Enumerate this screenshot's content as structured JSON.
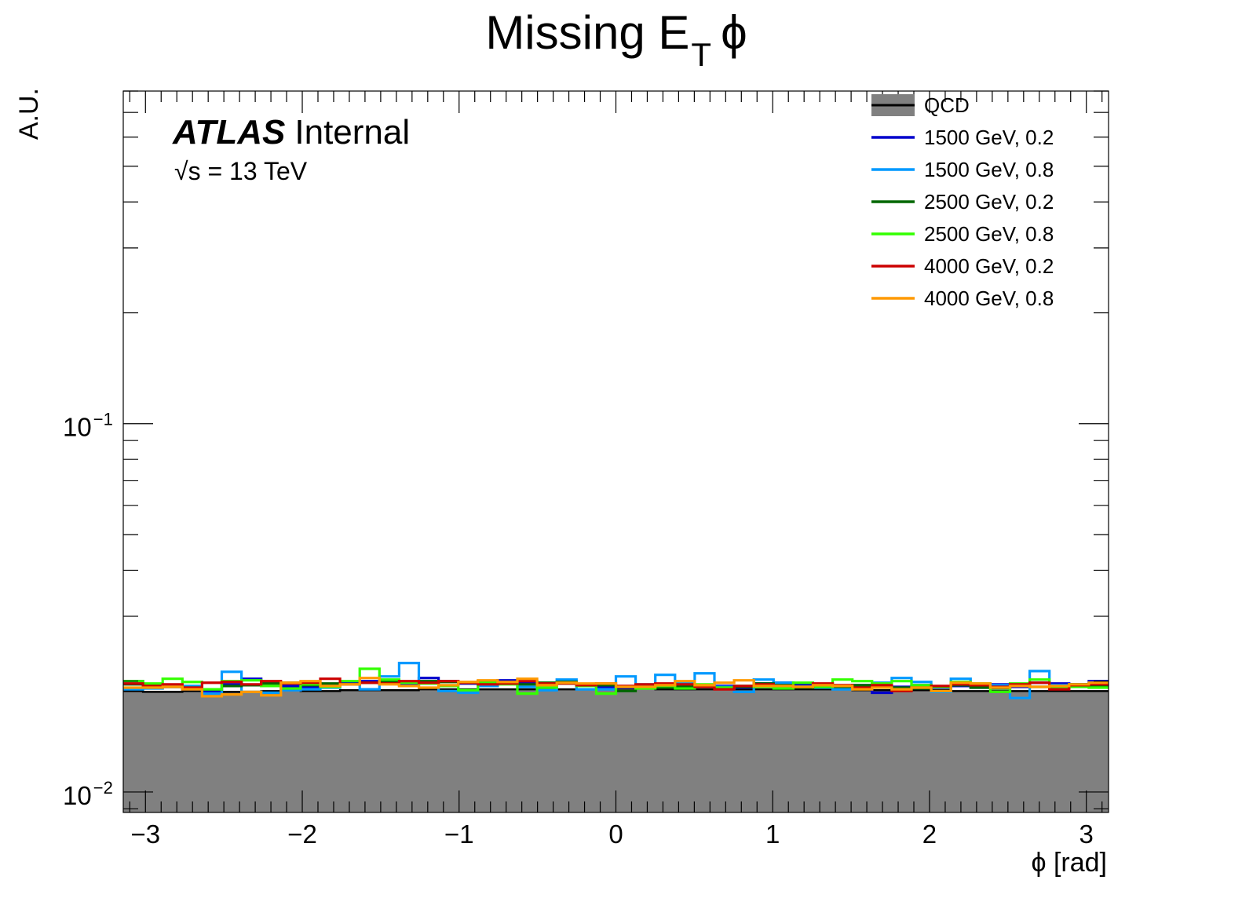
{
  "chart_data": {
    "type": "line",
    "title": "Missing E",
    "title_subscript": "T",
    "title_suffix": "ϕ",
    "xlabel": "ϕ [rad]",
    "ylabel": "A.U.",
    "xlim": [
      -3.1416,
      3.1416
    ],
    "ylim": [
      0.0088,
      0.8
    ],
    "yscale": "log",
    "grid": false,
    "x_ticks": [
      "−3",
      "−2",
      "−1",
      "0",
      "1",
      "2",
      "3"
    ],
    "x_tick_values": [
      -3,
      -2,
      -1,
      0,
      1,
      2,
      3
    ],
    "y_tick_labels": [
      {
        "base": "10",
        "exp": "−1",
        "value": 0.1
      },
      {
        "base": "10",
        "exp": "−2",
        "value": 0.01
      }
    ],
    "annotations": {
      "atlas": "ATLAS",
      "status": "Internal",
      "energy_root": "√",
      "energy": "s = 13 TeV"
    },
    "legend_position": "top-right",
    "bin_edges_range": [
      -3.1416,
      3.1416
    ],
    "n_bins": 50,
    "series": [
      {
        "name": "QCD",
        "color": "#808080",
        "style": "filled",
        "values": [
          0.0188,
          0.0187,
          0.0187,
          0.0188,
          0.0188,
          0.0187,
          0.0187,
          0.0188,
          0.0189,
          0.0188,
          0.0188,
          0.0189,
          0.0189,
          0.0189,
          0.0189,
          0.019,
          0.019,
          0.019,
          0.019,
          0.019,
          0.019,
          0.019,
          0.019,
          0.019,
          0.019,
          0.0191,
          0.0191,
          0.019,
          0.019,
          0.019,
          0.019,
          0.019,
          0.019,
          0.019,
          0.019,
          0.019,
          0.019,
          0.0189,
          0.0189,
          0.0189,
          0.0189,
          0.0189,
          0.0188,
          0.0188,
          0.0188,
          0.0188,
          0.0188,
          0.0188,
          0.0188,
          0.0188
        ]
      },
      {
        "name": "1500 GeV, 0.2",
        "color": "#0000cc",
        "style": "step",
        "values": [
          0.02,
          0.0195,
          0.0193,
          0.019,
          0.0188,
          0.0196,
          0.0203,
          0.0198,
          0.0194,
          0.0193,
          0.0195,
          0.0199,
          0.02,
          0.0197,
          0.0195,
          0.0204,
          0.02,
          0.0197,
          0.0198,
          0.0201,
          0.0198,
          0.0196,
          0.0197,
          0.0194,
          0.0193,
          0.0192,
          0.0195,
          0.0196,
          0.0198,
          0.0195,
          0.0194,
          0.0192,
          0.0197,
          0.0198,
          0.0196,
          0.0194,
          0.0193,
          0.0195,
          0.0186,
          0.0193,
          0.0195,
          0.0192,
          0.0194,
          0.0195,
          0.0196,
          0.0193,
          0.0198,
          0.0197,
          0.0196,
          0.02
        ]
      },
      {
        "name": "1500 GeV, 0.8",
        "color": "#0099ff",
        "style": "step",
        "values": [
          0.019,
          0.0191,
          0.0193,
          0.0194,
          0.0185,
          0.0212,
          0.0187,
          0.0186,
          0.0189,
          0.019,
          0.0192,
          0.0196,
          0.019,
          0.0206,
          0.0224,
          0.0198,
          0.0188,
          0.0186,
          0.0194,
          0.0197,
          0.0193,
          0.0189,
          0.0202,
          0.019,
          0.019,
          0.0206,
          0.0196,
          0.0208,
          0.0198,
          0.021,
          0.0193,
          0.0187,
          0.0202,
          0.0198,
          0.0193,
          0.0192,
          0.019,
          0.0195,
          0.0198,
          0.0204,
          0.0199,
          0.0187,
          0.0203,
          0.0192,
          0.0195,
          0.018,
          0.0213,
          0.0195,
          0.0196,
          0.0198
        ]
      },
      {
        "name": "2500 GeV, 0.2",
        "color": "#006600",
        "style": "step",
        "values": [
          0.0196,
          0.0195,
          0.0193,
          0.0192,
          0.019,
          0.0194,
          0.0195,
          0.0197,
          0.0198,
          0.0195,
          0.0197,
          0.0196,
          0.0198,
          0.0199,
          0.0199,
          0.02,
          0.0199,
          0.0198,
          0.02,
          0.0197,
          0.0196,
          0.0198,
          0.0199,
          0.0196,
          0.0195,
          0.0188,
          0.0193,
          0.0192,
          0.0194,
          0.0193,
          0.0192,
          0.0193,
          0.0197,
          0.0195,
          0.0192,
          0.0193,
          0.0193,
          0.0195,
          0.0194,
          0.0192,
          0.0191,
          0.0193,
          0.0195,
          0.0192,
          0.0191,
          0.0195,
          0.0193,
          0.0191,
          0.0196,
          0.0194
        ]
      },
      {
        "name": "2500 GeV, 0.8",
        "color": "#33ff00",
        "style": "step",
        "values": [
          0.02,
          0.0197,
          0.0203,
          0.0199,
          0.019,
          0.02,
          0.0201,
          0.0194,
          0.0191,
          0.0196,
          0.0193,
          0.02,
          0.0216,
          0.0202,
          0.0198,
          0.0197,
          0.0194,
          0.0189,
          0.0198,
          0.0196,
          0.0185,
          0.0192,
          0.0197,
          0.0194,
          0.0185,
          0.0193,
          0.0191,
          0.0194,
          0.0191,
          0.0196,
          0.0192,
          0.0194,
          0.0193,
          0.0191,
          0.0198,
          0.0193,
          0.0202,
          0.02,
          0.0197,
          0.02,
          0.0195,
          0.0193,
          0.0199,
          0.0197,
          0.0187,
          0.0197,
          0.0202,
          0.0191,
          0.0193,
          0.0192
        ]
      },
      {
        "name": "4000 GeV, 0.2",
        "color": "#cc0000",
        "style": "step",
        "values": [
          0.0197,
          0.0194,
          0.0196,
          0.0192,
          0.0198,
          0.0199,
          0.0196,
          0.02,
          0.0197,
          0.0198,
          0.0203,
          0.0196,
          0.0198,
          0.0197,
          0.02,
          0.0198,
          0.02,
          0.0198,
          0.0196,
          0.0197,
          0.02,
          0.0197,
          0.0197,
          0.0195,
          0.0197,
          0.0194,
          0.0196,
          0.0197,
          0.0196,
          0.0193,
          0.019,
          0.0194,
          0.0196,
          0.0194,
          0.0193,
          0.0197,
          0.0195,
          0.0192,
          0.0195,
          0.0188,
          0.0192,
          0.0194,
          0.0196,
          0.0195,
          0.0193,
          0.0196,
          0.0198,
          0.019,
          0.0195,
          0.0196
        ]
      },
      {
        "name": "4000 GeV, 0.8",
        "color": "#ff9900",
        "style": "step",
        "values": [
          0.0192,
          0.0192,
          0.0193,
          0.019,
          0.0182,
          0.0184,
          0.0187,
          0.0183,
          0.0198,
          0.02,
          0.0194,
          0.0196,
          0.0204,
          0.0196,
          0.0194,
          0.0192,
          0.0195,
          0.0199,
          0.0201,
          0.0199,
          0.0203,
          0.0195,
          0.0198,
          0.0197,
          0.0197,
          0.0193,
          0.0193,
          0.0195,
          0.02,
          0.0195,
          0.0198,
          0.0201,
          0.0194,
          0.0194,
          0.0193,
          0.0195,
          0.0194,
          0.019,
          0.0192,
          0.019,
          0.0192,
          0.0188,
          0.0198,
          0.0197,
          0.0192,
          0.0194,
          0.0193,
          0.0194,
          0.0196,
          0.0198
        ]
      }
    ]
  }
}
